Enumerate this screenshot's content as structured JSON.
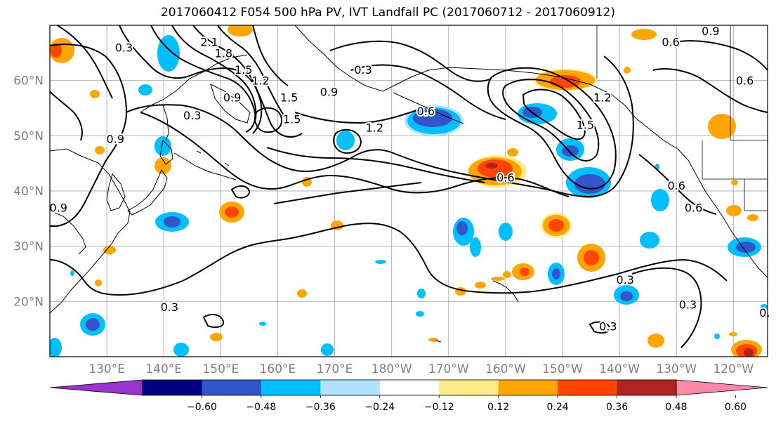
{
  "title": "2017060412 F054 500 hPa PV, IVT Landfall PC (2017060712 - 2017060912)",
  "lat_ticks": [
    {
      "label": "60°N",
      "lat": 60
    },
    {
      "label": "50°N",
      "lat": 50
    },
    {
      "label": "40°N",
      "lat": 40
    },
    {
      "label": "30°N",
      "lat": 30
    },
    {
      "label": "20°N",
      "lat": 20
    }
  ],
  "lon_ticks": [
    {
      "label": "130°E",
      "lon": 130
    },
    {
      "label": "140°E",
      "lon": 140
    },
    {
      "label": "150°E",
      "lon": 150
    },
    {
      "label": "160°E",
      "lon": 160
    },
    {
      "label": "170°E",
      "lon": 170
    },
    {
      "label": "180°W",
      "lon": 180
    },
    {
      "label": "170°W",
      "lon": 190
    },
    {
      "label": "160°W",
      "lon": 200
    },
    {
      "label": "150°W",
      "lon": 210
    },
    {
      "label": "140°W",
      "lon": 220
    },
    {
      "label": "130°W",
      "lon": 230
    },
    {
      "label": "120°W",
      "lon": 240
    }
  ],
  "extent": {
    "lon_min": 120,
    "lon_max": 246,
    "lat_min": 10,
    "lat_max": 70
  },
  "colorbar": {
    "colors": [
      "#9933cc",
      "#000080",
      "#3355cc",
      "#00bfff",
      "#b0e2ff",
      "#ffffff",
      "#ffeb88",
      "#ffa500",
      "#ff4500",
      "#b22222",
      "#ff88aa"
    ],
    "labels": [
      "−0.60",
      "−0.48",
      "−0.36",
      "−0.24",
      "−0.12",
      "0.12",
      "0.24",
      "0.36",
      "0.48",
      "0.60"
    ]
  },
  "contour_labels": [
    {
      "text": "0.3",
      "lon": 133,
      "lat": 66
    },
    {
      "text": "2.1",
      "lon": 148,
      "lat": 67
    },
    {
      "text": "1.8",
      "lon": 150.5,
      "lat": 65
    },
    {
      "text": "1.5",
      "lon": 154,
      "lat": 62
    },
    {
      "text": "1.2",
      "lon": 157,
      "lat": 60
    },
    {
      "text": "0.9",
      "lon": 152,
      "lat": 57
    },
    {
      "text": "1.5",
      "lon": 162,
      "lat": 57
    },
    {
      "text": "1.5",
      "lon": 162.5,
      "lat": 53
    },
    {
      "text": "0.3",
      "lon": 145,
      "lat": 53.7
    },
    {
      "text": "0.3",
      "lon": 175,
      "lat": 62
    },
    {
      "text": "0.9",
      "lon": 169,
      "lat": 58
    },
    {
      "text": "0.6",
      "lon": 186,
      "lat": 54.5
    },
    {
      "text": "1.2",
      "lon": 177,
      "lat": 51.5
    },
    {
      "text": "0.9",
      "lon": 131.5,
      "lat": 49.5
    },
    {
      "text": "0.6",
      "lon": 200,
      "lat": 42.5
    },
    {
      "text": "1.2",
      "lon": 217,
      "lat": 57
    },
    {
      "text": "1.5",
      "lon": 214,
      "lat": 52
    },
    {
      "text": "0.6",
      "lon": 229,
      "lat": 67
    },
    {
      "text": "0.9",
      "lon": 236,
      "lat": 69
    },
    {
      "text": "0.6",
      "lon": 242,
      "lat": 60
    },
    {
      "text": "0.6",
      "lon": 230,
      "lat": 41
    },
    {
      "text": "0.6",
      "lon": 233,
      "lat": 37
    },
    {
      "text": "0.9",
      "lon": 121.5,
      "lat": 37
    },
    {
      "text": "0.3",
      "lon": 141,
      "lat": 19
    },
    {
      "text": "0.3",
      "lon": 221,
      "lat": 24
    },
    {
      "text": "0.3",
      "lon": 232,
      "lat": 19.5
    },
    {
      "text": "0.3",
      "lon": 218,
      "lat": 15.5
    },
    {
      "text": "0.",
      "lon": 245.5,
      "lat": 18
    }
  ]
}
